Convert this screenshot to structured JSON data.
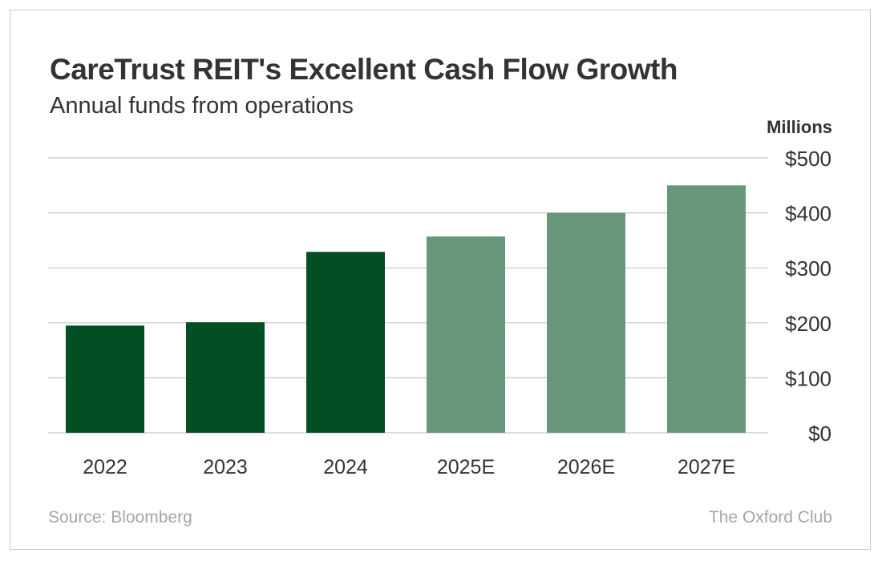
{
  "chart_data": {
    "type": "bar",
    "title": "CareTrust REIT's Excellent Cash Flow Growth",
    "subtitle": "Annual funds from operations",
    "unit_label": "Millions",
    "categories": [
      "2022",
      "2023",
      "2024",
      "2025E",
      "2026E",
      "2027E"
    ],
    "values": [
      195,
      201,
      329,
      357,
      400,
      450
    ],
    "estimate": [
      false,
      false,
      false,
      true,
      true,
      true
    ],
    "ylim": [
      0,
      500
    ],
    "yticks": [
      0,
      100,
      200,
      300,
      400,
      500
    ],
    "ytick_labels": [
      "$0",
      "$100",
      "$200",
      "$300",
      "$400",
      "$500"
    ],
    "y_axis_side": "right",
    "grid": true,
    "colors": {
      "actual": "#024f23",
      "estimate": "#66977a",
      "grid": "#c8c8c8"
    }
  },
  "footer": {
    "source": "Source: Bloomberg",
    "brand": "The Oxford Club"
  }
}
